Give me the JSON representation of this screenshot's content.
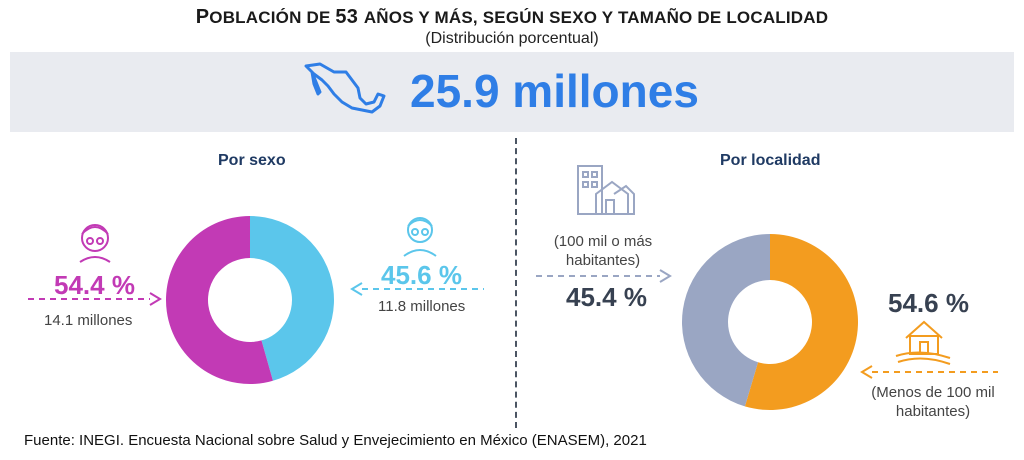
{
  "title_parts": [
    "P",
    "OBLACIÓN DE ",
    "53 ",
    "AÑOS Y MÁS",
    ", ",
    "SEGÚN SEXO Y TAMAÑO DE LOCALIDAD"
  ],
  "subtitle": "(Distribución porcentual)",
  "total_label": "25.9 millones",
  "colors": {
    "women": "#c23ab5",
    "men": "#5bc6eb",
    "urban": "#9aa6c3",
    "rural": "#f39c1f",
    "total": "#2f7ee6",
    "banner": "#e9ebf0"
  },
  "icons": [
    "mexico-map-icon",
    "woman-icon",
    "man-icon",
    "buildings-icon",
    "house-icon"
  ],
  "chart_data": [
    {
      "type": "pie",
      "title": "Por sexo",
      "series": [
        {
          "label": "54.4 %",
          "value": 54.4,
          "detail": "14.1 millones",
          "color": "#c23ab5",
          "icon": "woman-icon"
        },
        {
          "label": "45.6 %",
          "value": 45.6,
          "detail": "11.8 millones",
          "color": "#5bc6eb",
          "icon": "man-icon"
        }
      ]
    },
    {
      "type": "pie",
      "title": "Por localidad",
      "series": [
        {
          "label": "45.4 %",
          "value": 45.4,
          "detail": "(100 mil o más habitantes)",
          "color": "#9aa6c3",
          "icon": "buildings-icon"
        },
        {
          "label": "54.6 %",
          "value": 54.6,
          "detail": "(Menos de 100 mil habitantes)",
          "color": "#f39c1f",
          "icon": "house-icon"
        }
      ]
    }
  ],
  "source": "Fuente: INEGI. Encuesta Nacional sobre Salud y Envejecimiento en México (ENASEM), 2021"
}
